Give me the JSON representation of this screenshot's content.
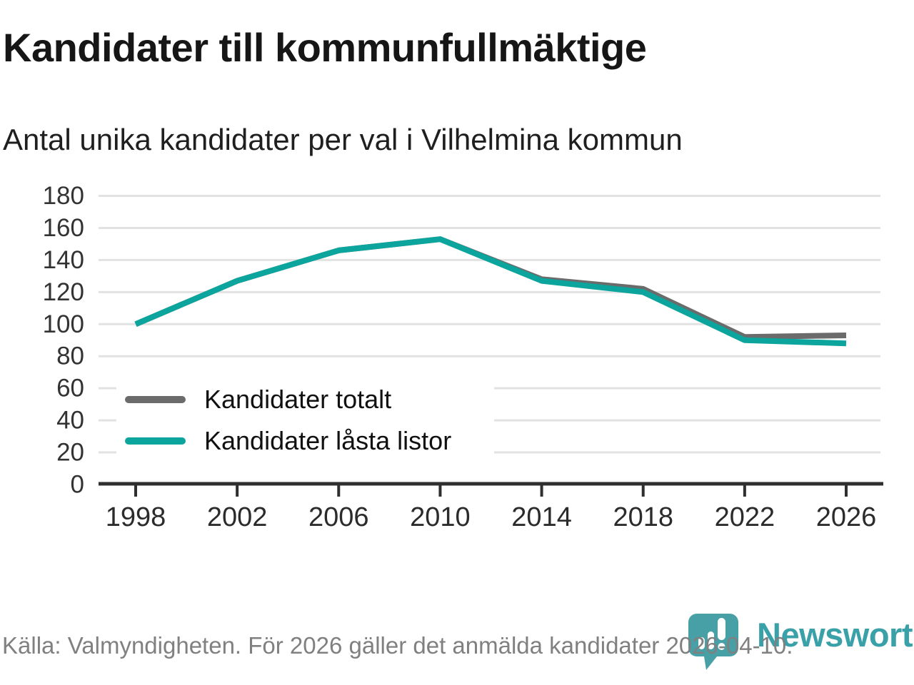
{
  "header": {
    "title": "Kandidater till kommunfullmäktige",
    "subtitle": "Antal unika kandidater per val i Vilhelmina kommun"
  },
  "chart_data": {
    "type": "line",
    "title": "Kandidater till kommunfullmäktige",
    "subtitle": "Antal unika kandidater per val i Vilhelmina kommun",
    "categories": [
      "1998",
      "2002",
      "2006",
      "2010",
      "2014",
      "2018",
      "2022",
      "2026"
    ],
    "series": [
      {
        "name": "Kandidater totalt",
        "color": "#6b6b6b",
        "values": [
          100,
          127,
          146,
          153,
          128,
          122,
          92,
          93
        ]
      },
      {
        "name": "Kandidater låsta listor",
        "color": "#0ba59e",
        "values": [
          100,
          127,
          146,
          153,
          127,
          120,
          90,
          88
        ]
      }
    ],
    "xlabel": "",
    "ylabel": "",
    "ylim": [
      0,
      180
    ],
    "yticks": [
      0,
      20,
      40,
      60,
      80,
      100,
      120,
      140,
      160,
      180
    ],
    "grid": "horizontal",
    "legend_position": "inside-bottom-left"
  },
  "colors": {
    "axis_line": "#2f2f2f",
    "grid_line": "#e2e2e2",
    "y_tick_label": "#333333",
    "x_tick_label": "#2b2b2b",
    "footer_text": "#808080",
    "brand_teal": "#47a0a5"
  },
  "footer": {
    "source": "Källa: Valmyndigheten. För 2026 gäller det anmälda kandidater 2026-04-10.",
    "brand": "Newsworthy"
  }
}
